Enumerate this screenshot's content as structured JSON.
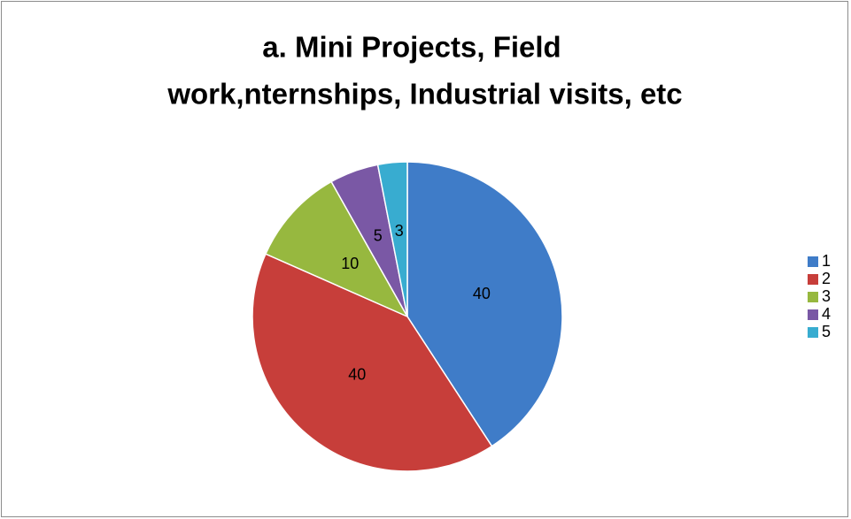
{
  "chart_data": {
    "type": "pie",
    "title": [
      "a. Mini Projects, Field",
      "work,nternships, Industrial visits, etc"
    ],
    "categories": [
      "1",
      "2",
      "3",
      "4",
      "5"
    ],
    "values": [
      40,
      40,
      10,
      5,
      3
    ],
    "colors": [
      "#3f7cc8",
      "#c73e3a",
      "#97b83f",
      "#7a58a5",
      "#38acd0"
    ],
    "legend": "right"
  }
}
